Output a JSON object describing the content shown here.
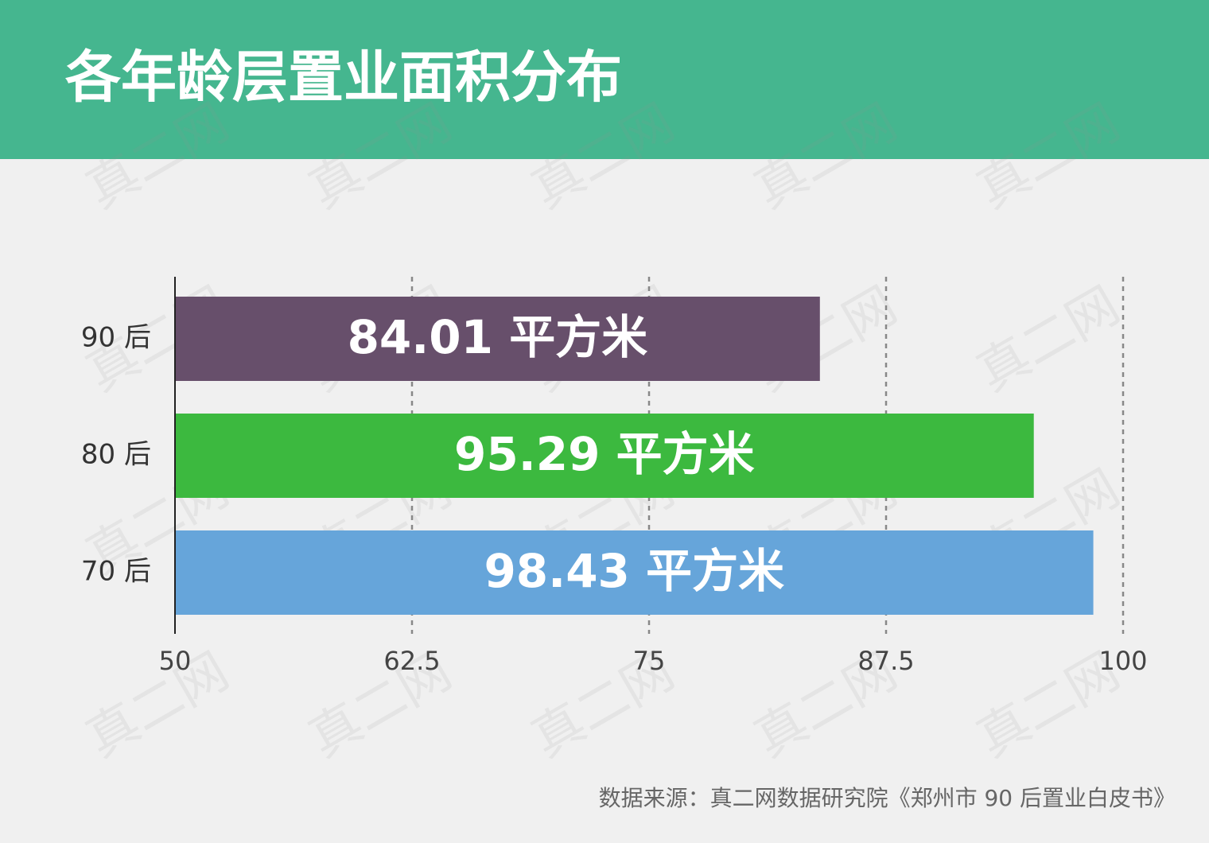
{
  "chart_data": {
    "type": "hbar",
    "title": "各年龄层置业面积分布",
    "categories": [
      "90 后",
      "80 后",
      "70 后"
    ],
    "values": [
      84.01,
      95.29,
      98.43
    ],
    "value_labels": [
      "84.01 平方米",
      "95.29 平方米",
      "98.43 平方米"
    ],
    "colors": [
      "#674f6b",
      "#3cb93f",
      "#66a5da"
    ],
    "xlim": [
      50,
      100
    ],
    "xticks": [
      50,
      62.5,
      75,
      87.5,
      100
    ],
    "grid": true,
    "source": "数据来源：真二网数据研究院《郑州市 90 后置业白皮书》",
    "watermark": "真二网"
  }
}
